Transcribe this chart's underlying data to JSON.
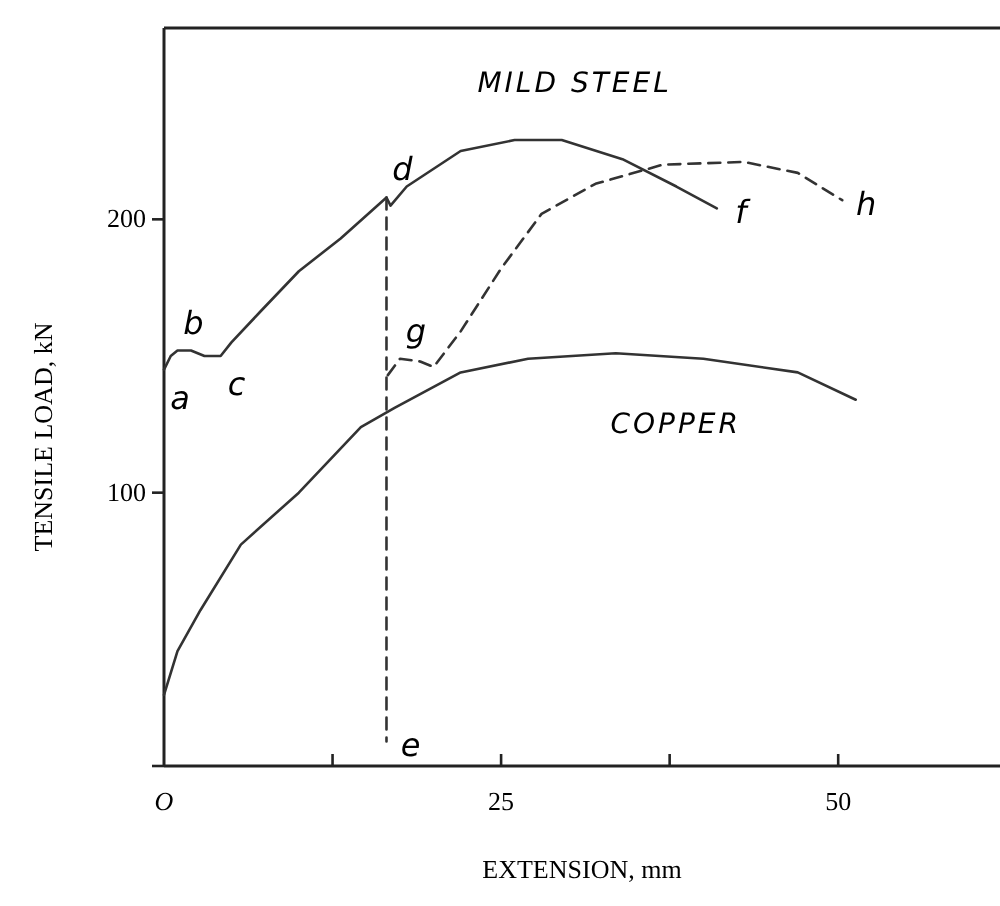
{
  "chart_data": {
    "type": "line",
    "xlabel": "EXTENSION, mm",
    "ylabel": "TENSILE LOAD, kN",
    "xlim": [
      0,
      62
    ],
    "ylim": [
      0,
      270
    ],
    "xticks": [
      {
        "value": 0,
        "label": "O"
      },
      {
        "value": 12.5,
        "label": null
      },
      25,
      {
        "value": 37.5,
        "label": null
      },
      50
    ],
    "yticks": [
      {
        "value": 0,
        "label": null
      },
      100,
      200
    ],
    "grid": false,
    "marker": "none",
    "series": [
      {
        "name": "MILD STEEL",
        "color": "#333333",
        "line_style": "solid",
        "x": [
          0,
          0.5,
          1,
          2,
          3,
          4.2,
          5,
          7.1,
          10,
          13.1,
          16.5,
          16.8,
          18,
          22,
          26,
          29.5,
          34,
          38,
          41
        ],
        "values": [
          145,
          150,
          152,
          152,
          150,
          150,
          155,
          166,
          181,
          193,
          208,
          205,
          212,
          225,
          229,
          229,
          222,
          212,
          204
        ]
      },
      {
        "color": "#333333",
        "line_style": "dashed",
        "x": [
          16.5,
          16.5
        ],
        "values": [
          208,
          9
        ]
      },
      {
        "color": "#333333",
        "line_style": "dashed",
        "x": [
          16.6,
          17.5,
          19,
          20,
          22,
          25,
          28,
          32,
          37,
          43,
          47,
          50.3
        ],
        "values": [
          143,
          149,
          148,
          146,
          159,
          182,
          202,
          213,
          220,
          221,
          217,
          207
        ]
      },
      {
        "name": "COPPER",
        "color": "#333333",
        "line_style": "solid",
        "x": [
          0,
          1,
          2.7,
          5.7,
          10,
          14.6,
          17.1,
          22,
          27,
          33.5,
          40,
          47,
          51.3
        ],
        "values": [
          26,
          42,
          57,
          81,
          100,
          124,
          131,
          144,
          149,
          151,
          149,
          144,
          134
        ]
      }
    ],
    "annotations": [
      {
        "text": "a",
        "x": 0,
        "y": 145
      },
      {
        "text": "b",
        "x": 1,
        "y": 152
      },
      {
        "text": "c",
        "x": 4.2,
        "y": 150
      },
      {
        "text": "d",
        "x": 16.5,
        "y": 208
      },
      {
        "text": "e",
        "x": 16.5,
        "y": 9
      },
      {
        "text": "f",
        "x": 41,
        "y": 204
      },
      {
        "text": "g",
        "x": 17.5,
        "y": 149
      },
      {
        "text": "h",
        "x": 50.3,
        "y": 207
      }
    ]
  }
}
